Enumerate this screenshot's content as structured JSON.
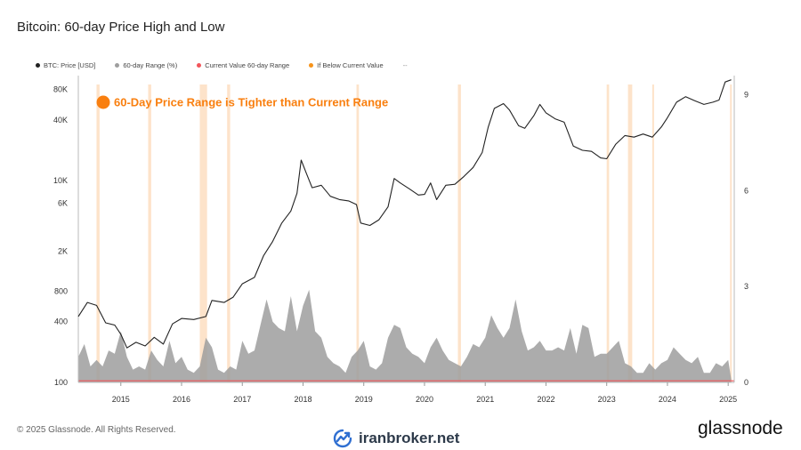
{
  "title": "Bitcoin: 60-day Price High and Low",
  "legend": [
    {
      "label": "BTC: Price [USD]",
      "color": "#222222"
    },
    {
      "label": "60-day Range (%)",
      "color": "#9e9e9e"
    },
    {
      "label": "Current Value 60-day Range",
      "color": "#f2555a"
    },
    {
      "label": "If Below Current Value",
      "color": "#f7931a"
    },
    {
      "label": "--",
      "color": ""
    }
  ],
  "footer": "© 2025 Glassnode. All Rights Reserved.",
  "brand": "iranbroker.net",
  "logo": "glassnode",
  "colors": {
    "price": "#222222",
    "range_fill": "#9e9e9e",
    "current_line": "#f2555a",
    "highlight": "#fde0c4",
    "accent": "#f97f0f"
  },
  "chart_data": {
    "type": "line",
    "title": "Bitcoin: 60-day Price High and Low",
    "annotation": "60-Day Price Range is Tighter than Current Range",
    "xlabel": "",
    "ylabel_left": "",
    "ylabel_right": "",
    "x_ticks": [
      "2015",
      "2016",
      "2017",
      "2018",
      "2019",
      "2020",
      "2021",
      "2022",
      "2023",
      "2024",
      "2025"
    ],
    "y_left_ticks": [
      "80K",
      "40K",
      "10K",
      "6K",
      "2K",
      "800",
      "400",
      "100"
    ],
    "y_left_scale": "log",
    "y_left_range": [
      100,
      110000
    ],
    "y_right_ticks": [
      "9",
      "6",
      "3",
      "0"
    ],
    "y_right_range": [
      0,
      9.6
    ],
    "x_range": [
      2014.3,
      2025.1
    ],
    "current_value": 0.05,
    "series": [
      {
        "name": "BTC: Price [USD]",
        "x": [
          2014.3,
          2014.45,
          2014.6,
          2014.75,
          2014.9,
          2015.0,
          2015.1,
          2015.25,
          2015.4,
          2015.55,
          2015.7,
          2015.85,
          2016.0,
          2016.2,
          2016.4,
          2016.5,
          2016.7,
          2016.85,
          2017.0,
          2017.2,
          2017.35,
          2017.5,
          2017.65,
          2017.8,
          2017.9,
          2017.97,
          2018.05,
          2018.15,
          2018.3,
          2018.45,
          2018.6,
          2018.75,
          2018.88,
          2018.95,
          2019.1,
          2019.25,
          2019.4,
          2019.5,
          2019.6,
          2019.75,
          2019.9,
          2020.0,
          2020.1,
          2020.2,
          2020.35,
          2020.5,
          2020.65,
          2020.8,
          2020.95,
          2021.05,
          2021.15,
          2021.3,
          2021.4,
          2021.55,
          2021.65,
          2021.8,
          2021.9,
          2022.0,
          2022.15,
          2022.3,
          2022.45,
          2022.6,
          2022.75,
          2022.9,
          2023.0,
          2023.15,
          2023.3,
          2023.45,
          2023.6,
          2023.75,
          2023.9,
          2024.0,
          2024.15,
          2024.3,
          2024.45,
          2024.6,
          2024.75,
          2024.85,
          2024.95,
          2025.05
        ],
        "y": [
          450,
          620,
          580,
          390,
          370,
          300,
          220,
          250,
          230,
          280,
          240,
          380,
          430,
          420,
          450,
          650,
          620,
          700,
          950,
          1100,
          1800,
          2500,
          3800,
          5000,
          7500,
          16000,
          12000,
          8500,
          9000,
          7000,
          6500,
          6300,
          5800,
          3800,
          3600,
          4100,
          5500,
          10500,
          9500,
          8300,
          7200,
          7300,
          9500,
          6500,
          9000,
          9200,
          11000,
          13500,
          19000,
          34000,
          52000,
          58000,
          50000,
          35000,
          33000,
          44000,
          57000,
          47000,
          41000,
          38000,
          22000,
          20000,
          19500,
          16800,
          16500,
          23000,
          28000,
          27000,
          29000,
          27000,
          34000,
          42000,
          60000,
          68000,
          62000,
          57000,
          60000,
          63000,
          95000,
          100000
        ]
      },
      {
        "name": "60-day Range (%)",
        "x": [
          2014.3,
          2014.4,
          2014.5,
          2014.6,
          2014.7,
          2014.8,
          2014.9,
          2015.0,
          2015.1,
          2015.2,
          2015.3,
          2015.4,
          2015.5,
          2015.6,
          2015.7,
          2015.8,
          2015.9,
          2016.0,
          2016.1,
          2016.2,
          2016.3,
          2016.4,
          2016.5,
          2016.6,
          2016.7,
          2016.8,
          2016.9,
          2017.0,
          2017.1,
          2017.2,
          2017.3,
          2017.4,
          2017.5,
          2017.6,
          2017.7,
          2017.8,
          2017.9,
          2018.0,
          2018.1,
          2018.2,
          2018.3,
          2018.4,
          2018.5,
          2018.6,
          2018.7,
          2018.8,
          2018.9,
          2019.0,
          2019.1,
          2019.2,
          2019.3,
          2019.4,
          2019.5,
          2019.6,
          2019.7,
          2019.8,
          2019.9,
          2020.0,
          2020.1,
          2020.2,
          2020.3,
          2020.4,
          2020.5,
          2020.6,
          2020.7,
          2020.8,
          2020.9,
          2021.0,
          2021.1,
          2021.2,
          2021.3,
          2021.4,
          2021.5,
          2021.6,
          2021.7,
          2021.8,
          2021.9,
          2022.0,
          2022.1,
          2022.2,
          2022.3,
          2022.4,
          2022.5,
          2022.6,
          2022.7,
          2022.8,
          2022.9,
          2023.0,
          2023.1,
          2023.2,
          2023.3,
          2023.4,
          2023.5,
          2023.6,
          2023.7,
          2023.8,
          2023.9,
          2024.0,
          2024.1,
          2024.2,
          2024.3,
          2024.4,
          2024.5,
          2024.6,
          2024.7,
          2024.8,
          2024.9,
          2025.0,
          2025.05
        ],
        "y": [
          0.8,
          1.2,
          0.5,
          0.7,
          0.5,
          1.0,
          0.9,
          1.6,
          0.8,
          0.4,
          0.5,
          0.4,
          1.0,
          0.7,
          0.5,
          1.3,
          0.6,
          0.8,
          0.4,
          0.3,
          0.5,
          1.4,
          1.1,
          0.4,
          0.3,
          0.5,
          0.4,
          1.3,
          0.9,
          1.0,
          1.8,
          2.6,
          1.9,
          1.7,
          1.6,
          2.7,
          1.6,
          2.4,
          2.9,
          1.6,
          1.4,
          0.8,
          0.6,
          0.5,
          0.3,
          0.8,
          1.0,
          1.3,
          0.5,
          0.4,
          0.6,
          1.4,
          1.8,
          1.7,
          1.1,
          0.9,
          0.8,
          0.6,
          1.1,
          1.4,
          1.0,
          0.7,
          0.6,
          0.5,
          0.8,
          1.2,
          1.1,
          1.4,
          2.1,
          1.7,
          1.4,
          1.7,
          2.6,
          1.6,
          1.0,
          1.1,
          1.3,
          1.0,
          1.0,
          1.1,
          1.0,
          1.7,
          0.9,
          1.8,
          1.7,
          0.8,
          0.9,
          0.9,
          1.1,
          1.3,
          0.6,
          0.5,
          0.3,
          0.3,
          0.6,
          0.4,
          0.6,
          0.7,
          1.1,
          0.9,
          0.7,
          0.6,
          0.8,
          0.3,
          0.3,
          0.6,
          0.5,
          0.7,
          0.1
        ]
      }
    ],
    "highlight_periods": [
      [
        2014.6,
        2014.65
      ],
      [
        2015.45,
        2015.5
      ],
      [
        2016.3,
        2016.42
      ],
      [
        2016.75,
        2016.8
      ],
      [
        2018.88,
        2018.92
      ],
      [
        2020.55,
        2020.6
      ],
      [
        2023.0,
        2023.04
      ],
      [
        2023.35,
        2023.42
      ],
      [
        2023.75,
        2023.78
      ],
      [
        2025.03,
        2025.05
      ]
    ]
  }
}
